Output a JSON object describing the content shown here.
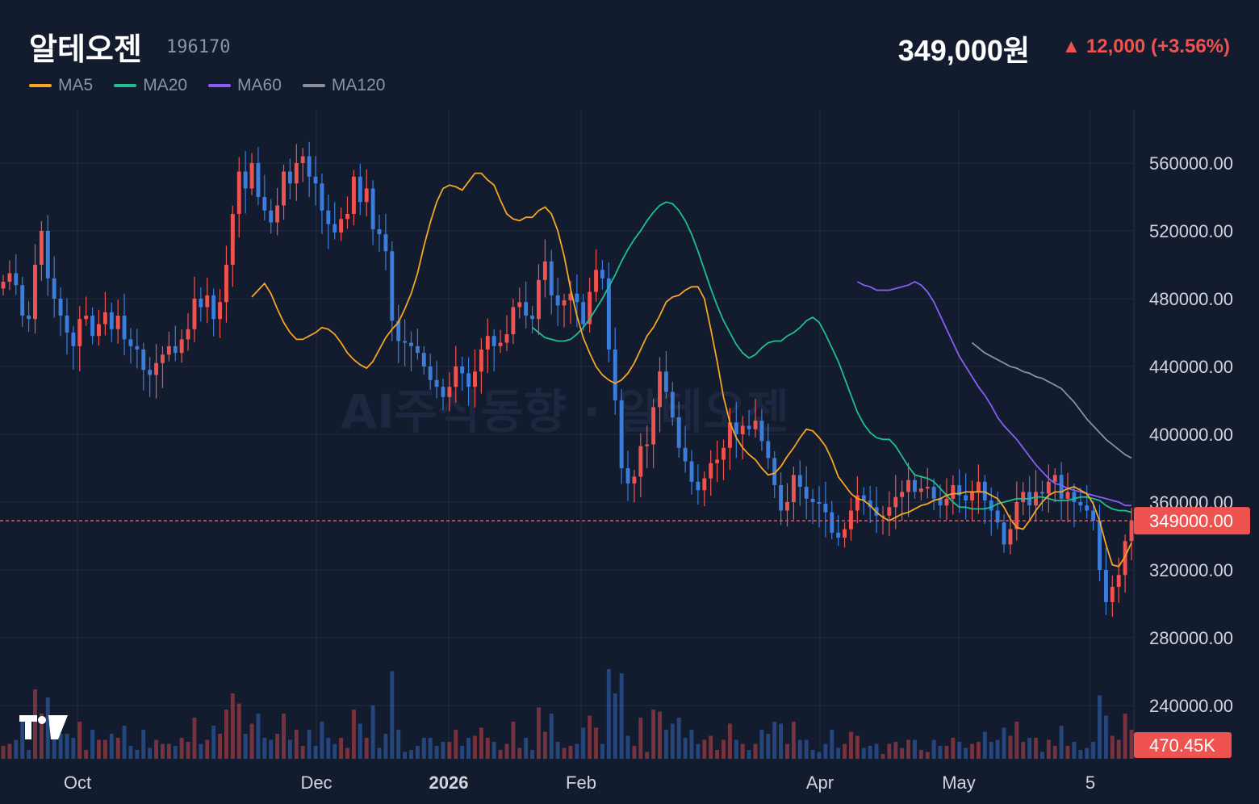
{
  "header": {
    "title": "알테오젠",
    "code": "196170",
    "price": "349,000원",
    "change": "▲ 12,000 (+3.56%)"
  },
  "legend": [
    {
      "label": "MA5",
      "color": "#f5a623"
    },
    {
      "label": "MA20",
      "color": "#1fbf8f"
    },
    {
      "label": "MA60",
      "color": "#8b5cf6"
    },
    {
      "label": "MA120",
      "color": "#8a909c"
    }
  ],
  "watermark": "AI주식동향 · 알테오젠",
  "last_price_label": "349000.00",
  "volume_label": "470.45K",
  "colors": {
    "up": "#ef5350",
    "down": "#3b7ddd",
    "background": "#131b2e",
    "grid": "#232c40",
    "price_line": "#ef5350"
  },
  "chart_data": {
    "type": "candlestick",
    "y_axis": {
      "ticks": [
        "560000.00",
        "520000.00",
        "480000.00",
        "440000.00",
        "400000.00",
        "360000.00",
        "320000.00",
        "280000.00",
        "240000.00"
      ],
      "range": [
        225000,
        590000
      ]
    },
    "x_axis": {
      "labels": [
        "Oct",
        "Dec",
        "2026",
        "Feb",
        "Apr",
        "May",
        "5"
      ]
    },
    "last_price": 349000,
    "ohlc_closes": [
      490000,
      495000,
      488000,
      470000,
      468000,
      500000,
      520000,
      492000,
      480000,
      470000,
      460000,
      452000,
      468000,
      470000,
      458000,
      465000,
      472000,
      462000,
      470000,
      456000,
      452000,
      450000,
      438000,
      435000,
      442000,
      447000,
      452000,
      448000,
      456000,
      462000,
      480000,
      475000,
      482000,
      468000,
      478000,
      500000,
      530000,
      555000,
      545000,
      560000,
      540000,
      532000,
      525000,
      535000,
      555000,
      548000,
      560000,
      564000,
      552000,
      548000,
      532000,
      524000,
      519000,
      527000,
      530000,
      552000,
      537000,
      545000,
      521000,
      518000,
      508000,
      467000,
      455000,
      454000,
      452000,
      448000,
      440000,
      432000,
      428000,
      422000,
      428000,
      440000,
      436000,
      428000,
      437000,
      450000,
      458000,
      452000,
      454000,
      459000,
      475000,
      478000,
      470000,
      468000,
      491000,
      502000,
      482000,
      476000,
      479000,
      483000,
      478000,
      465000,
      484000,
      497000,
      492000,
      450000,
      420000,
      380000,
      371000,
      375000,
      393000,
      394000,
      416000,
      437000,
      425000,
      410000,
      392000,
      384000,
      372000,
      367000,
      374000,
      383000,
      385000,
      392000,
      407000,
      400000,
      405000,
      403000,
      408000,
      396000,
      386000,
      370000,
      355000,
      360000,
      376000,
      369000,
      362000,
      360000,
      359000,
      354000,
      342000,
      339000,
      344000,
      355000,
      364000,
      361000,
      357000,
      352000,
      352000,
      357000,
      363000,
      366000,
      373000,
      366000,
      368000,
      369000,
      362000,
      358000,
      362000,
      370000,
      364000,
      361000,
      366000,
      372000,
      361000,
      355000,
      348000,
      335000,
      344000,
      360000,
      366000,
      358000,
      366000,
      365000,
      372000,
      376000,
      362000,
      366000,
      360000,
      358000,
      355000,
      349000,
      320000,
      301000,
      310000,
      317000,
      337000,
      349000
    ],
    "ma5": [
      481000,
      485000,
      489000,
      483000,
      474000,
      466000,
      460000,
      456000,
      456000,
      458000,
      460000,
      463000,
      462000,
      459000,
      454000,
      448000,
      444000,
      441000,
      439000,
      443000,
      450000,
      457000,
      462000,
      466000,
      474000,
      483000,
      495000,
      511000,
      525000,
      537000,
      545000,
      547000,
      546000,
      544000,
      549000,
      554000,
      554000,
      550000,
      547000,
      538000,
      530000,
      527000,
      526000,
      528000,
      528000,
      532000,
      534000,
      530000,
      520000,
      505000,
      486000,
      470000,
      457000,
      448000,
      440000,
      435000,
      432000,
      430000,
      432000,
      436000,
      442000,
      450000,
      458000,
      463000,
      470000,
      478000,
      481000,
      482000,
      485000,
      487000,
      487000,
      480000,
      462000,
      443000,
      422000,
      407000,
      398000,
      392000,
      388000,
      385000,
      380000,
      376000,
      377000,
      381000,
      387000,
      392000,
      398000,
      403000,
      402000,
      398000,
      393000,
      385000,
      375000,
      370000,
      365000,
      362000,
      361000,
      358000,
      354000,
      351000,
      349000,
      351000,
      353000,
      354000,
      356000,
      358000,
      359000,
      361000,
      362000,
      364000,
      365000,
      365000,
      366000,
      366000,
      366000,
      366000,
      364000,
      362000,
      357000,
      350000,
      345000,
      344000,
      349000,
      355000,
      360000,
      364000,
      366000,
      366000,
      368000,
      369000,
      367000,
      365000,
      359000,
      349000,
      335000,
      323000,
      322000,
      328000,
      336000
    ],
    "ma20": [
      463000,
      460000,
      457000,
      456000,
      455000,
      455000,
      456000,
      459000,
      463000,
      468000,
      474000,
      480000,
      487000,
      494000,
      502000,
      509000,
      515000,
      520000,
      526000,
      531000,
      535000,
      537000,
      536000,
      532000,
      526000,
      518000,
      508000,
      497000,
      486000,
      476000,
      467000,
      460000,
      453000,
      448000,
      445000,
      447000,
      451000,
      454000,
      455000,
      455000,
      458000,
      460000,
      463000,
      467000,
      469000,
      466000,
      459000,
      451000,
      443000,
      433000,
      423000,
      413000,
      406000,
      401000,
      398000,
      397000,
      397000,
      393000,
      387000,
      381000,
      376000,
      375000,
      374000,
      372000,
      368000,
      364000,
      360000,
      357000,
      357000,
      356000,
      356000,
      356000,
      357000,
      359000,
      360000,
      361000,
      362000,
      362000,
      362000,
      363000,
      363000,
      362000,
      361000,
      361000,
      361000,
      362000,
      363000,
      363000,
      362000,
      361000,
      358000,
      356000,
      355000,
      355000,
      354000
    ],
    "ma60": [
      490000,
      488000,
      487000,
      485000,
      485000,
      485000,
      486000,
      487000,
      488000,
      490000,
      488000,
      484000,
      478000,
      470000,
      462000,
      454000,
      446000,
      440000,
      434000,
      428000,
      423000,
      417000,
      410000,
      405000,
      401000,
      397000,
      392000,
      387000,
      382000,
      378000,
      374000,
      371000,
      370000,
      368000,
      367000,
      366000,
      365000,
      364000,
      363000,
      362000,
      361000,
      360000,
      358000,
      358000
    ],
    "ma120": [
      454000,
      451000,
      448000,
      446000,
      444000,
      442000,
      440000,
      439000,
      437000,
      436000,
      434000,
      433000,
      431000,
      429000,
      427000,
      423000,
      419000,
      414000,
      409000,
      405000,
      401000,
      397000,
      394000,
      391000,
      388000,
      386000
    ]
  }
}
